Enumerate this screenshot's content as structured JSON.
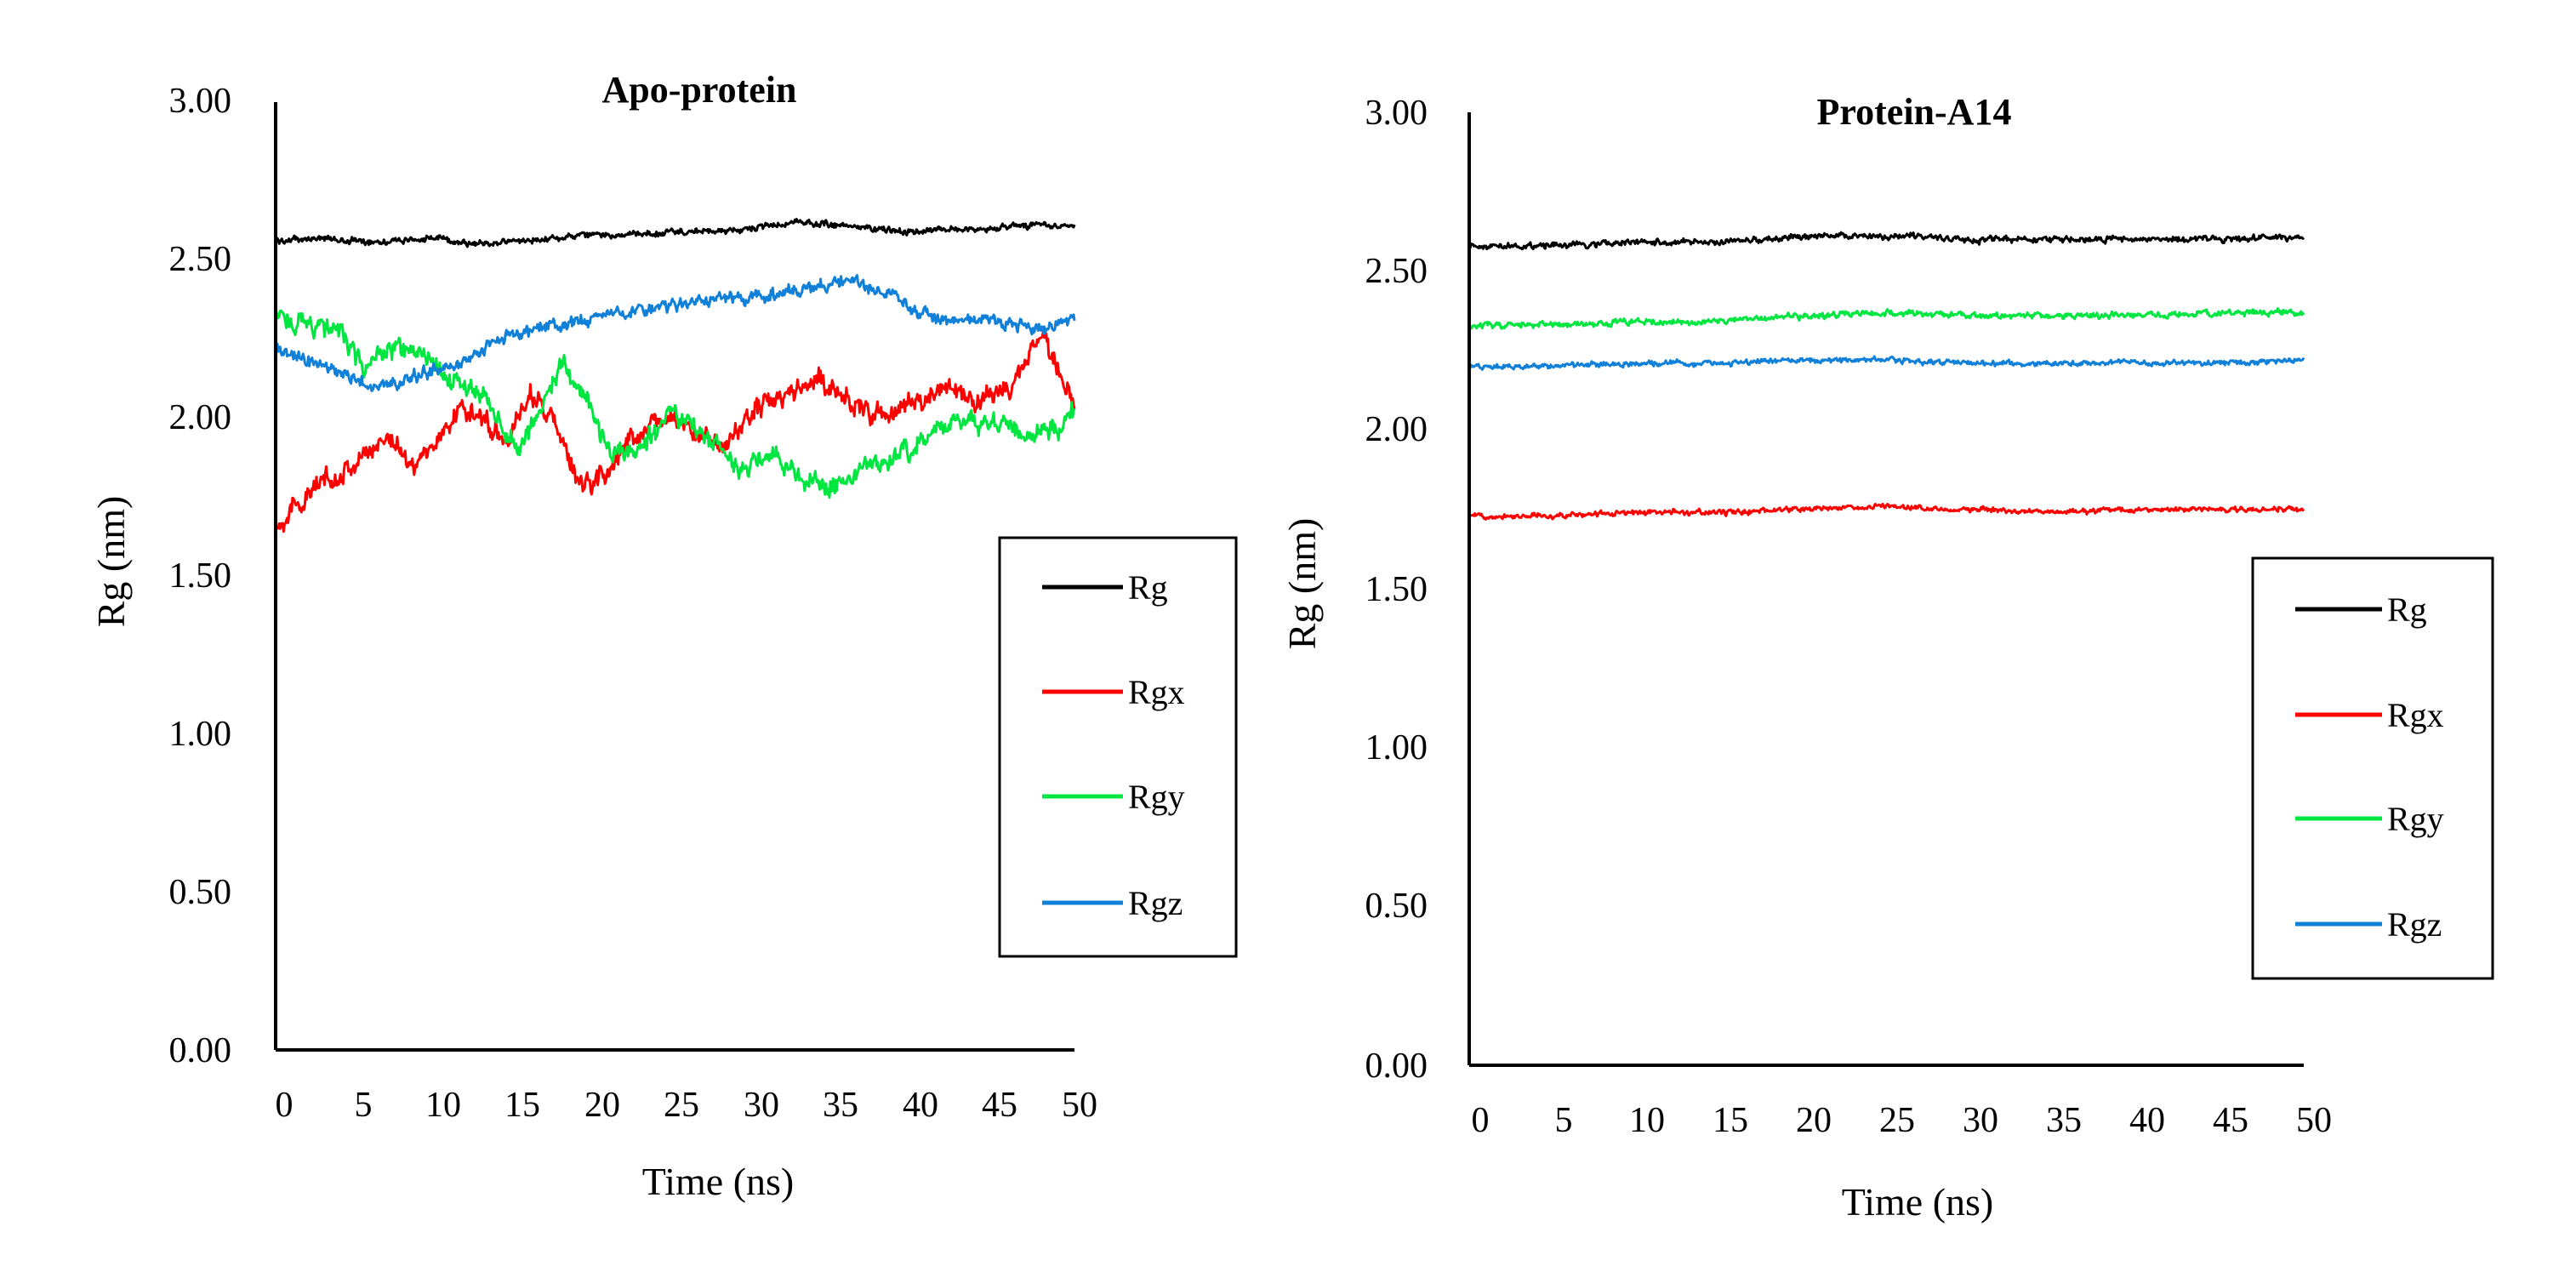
{
  "chart_data": [
    {
      "type": "line",
      "title": "Apo-protein",
      "xlabel": "Time (ns)",
      "ylabel": "Rg (nm)",
      "xlim": [
        0,
        50
      ],
      "ylim": [
        0,
        3
      ],
      "x_ticks": [
        "0",
        "5",
        "10",
        "15",
        "20",
        "25",
        "30",
        "35",
        "40",
        "45",
        "50"
      ],
      "y_ticks": [
        "0.00",
        "0.50",
        "1.00",
        "1.50",
        "2.00",
        "2.50",
        "3.00"
      ],
      "legend_position": "right",
      "series": [
        {
          "name": "Rg",
          "color": "#000000",
          "x": [
            0,
            2.5,
            5,
            7.5,
            10,
            12.5,
            15,
            17.5,
            20,
            22.5,
            25,
            27.5,
            30,
            32.5,
            35,
            37.5,
            40,
            42.5,
            45,
            47.5,
            50
          ],
          "values": [
            2.56,
            2.57,
            2.56,
            2.56,
            2.57,
            2.55,
            2.56,
            2.57,
            2.58,
            2.58,
            2.59,
            2.59,
            2.6,
            2.62,
            2.61,
            2.6,
            2.59,
            2.6,
            2.6,
            2.61,
            2.61
          ],
          "noise": 0.012
        },
        {
          "name": "Rgx",
          "color": "#ff0000",
          "x": [
            0,
            1.5,
            3,
            5,
            7,
            8.5,
            10,
            11.5,
            13,
            14.5,
            16,
            17.5,
            19,
            20.5,
            22,
            24,
            26,
            28,
            30,
            32,
            34,
            36,
            38,
            40,
            42,
            44,
            46,
            48,
            50
          ],
          "values": [
            1.66,
            1.73,
            1.8,
            1.85,
            1.95,
            1.85,
            1.92,
            2.03,
            2.0,
            1.93,
            2.08,
            1.98,
            1.78,
            1.82,
            1.92,
            2.0,
            1.97,
            1.9,
            2.03,
            2.08,
            2.12,
            2.05,
            2.0,
            2.05,
            2.1,
            2.05,
            2.1,
            2.26,
            2.04
          ],
          "noise": 0.04
        },
        {
          "name": "Rgy",
          "color": "#00e640",
          "x": [
            0,
            2,
            4,
            5.5,
            7,
            9,
            11,
            13,
            15,
            16.5,
            18,
            19.5,
            21,
            23,
            25,
            27,
            29,
            31,
            33,
            35,
            37,
            39,
            41,
            43,
            45,
            47,
            49,
            50
          ],
          "values": [
            2.32,
            2.3,
            2.28,
            2.15,
            2.22,
            2.2,
            2.12,
            2.08,
            1.9,
            2.02,
            2.18,
            2.05,
            1.88,
            1.92,
            2.02,
            1.95,
            1.83,
            1.9,
            1.8,
            1.78,
            1.85,
            1.88,
            1.95,
            2.0,
            1.98,
            1.95,
            1.97,
            2.03
          ],
          "noise": 0.04
        },
        {
          "name": "Rgz",
          "color": "#1180d9",
          "x": [
            0,
            2,
            4,
            6,
            8,
            10,
            12,
            14,
            16,
            18,
            20,
            22,
            24,
            26,
            28,
            30,
            32,
            34,
            36,
            38,
            40,
            42,
            44,
            46,
            48,
            50
          ],
          "values": [
            2.22,
            2.18,
            2.15,
            2.1,
            2.12,
            2.15,
            2.18,
            2.25,
            2.28,
            2.3,
            2.32,
            2.33,
            2.35,
            2.37,
            2.38,
            2.38,
            2.4,
            2.42,
            2.43,
            2.4,
            2.35,
            2.3,
            2.32,
            2.3,
            2.28,
            2.32
          ],
          "noise": 0.025
        }
      ]
    },
    {
      "type": "line",
      "title": "Protein-A14",
      "xlabel": "Time (ns)",
      "ylabel": "Rg (nm)",
      "xlim": [
        0,
        50
      ],
      "ylim": [
        0,
        3
      ],
      "x_ticks": [
        "0",
        "5",
        "10",
        "15",
        "20",
        "25",
        "30",
        "35",
        "40",
        "45",
        "50"
      ],
      "y_ticks": [
        "0.00",
        "0.50",
        "1.00",
        "1.50",
        "2.00",
        "2.50",
        "3.00"
      ],
      "legend_position": "right",
      "series": [
        {
          "name": "Rg",
          "color": "#000000",
          "x": [
            0,
            5,
            10,
            15,
            20,
            25,
            30,
            35,
            40,
            45,
            50
          ],
          "values": [
            2.58,
            2.58,
            2.59,
            2.59,
            2.61,
            2.61,
            2.6,
            2.6,
            2.6,
            2.6,
            2.61
          ],
          "noise": 0.012
        },
        {
          "name": "Rgx",
          "color": "#ff0000",
          "x": [
            0,
            5,
            10,
            15,
            20,
            25,
            30,
            35,
            40,
            45,
            50
          ],
          "values": [
            1.73,
            1.73,
            1.74,
            1.74,
            1.75,
            1.76,
            1.75,
            1.74,
            1.75,
            1.75,
            1.75
          ],
          "noise": 0.01
        },
        {
          "name": "Rgy",
          "color": "#00e640",
          "x": [
            0,
            5,
            10,
            15,
            20,
            25,
            30,
            35,
            40,
            45,
            50
          ],
          "values": [
            2.33,
            2.33,
            2.34,
            2.34,
            2.36,
            2.37,
            2.36,
            2.36,
            2.36,
            2.37,
            2.37
          ],
          "noise": 0.012
        },
        {
          "name": "Rgz",
          "color": "#1180d9",
          "x": [
            0,
            5,
            10,
            15,
            20,
            25,
            30,
            35,
            40,
            45,
            50
          ],
          "values": [
            2.2,
            2.2,
            2.21,
            2.21,
            2.22,
            2.22,
            2.21,
            2.21,
            2.21,
            2.21,
            2.22
          ],
          "noise": 0.01
        }
      ]
    }
  ]
}
